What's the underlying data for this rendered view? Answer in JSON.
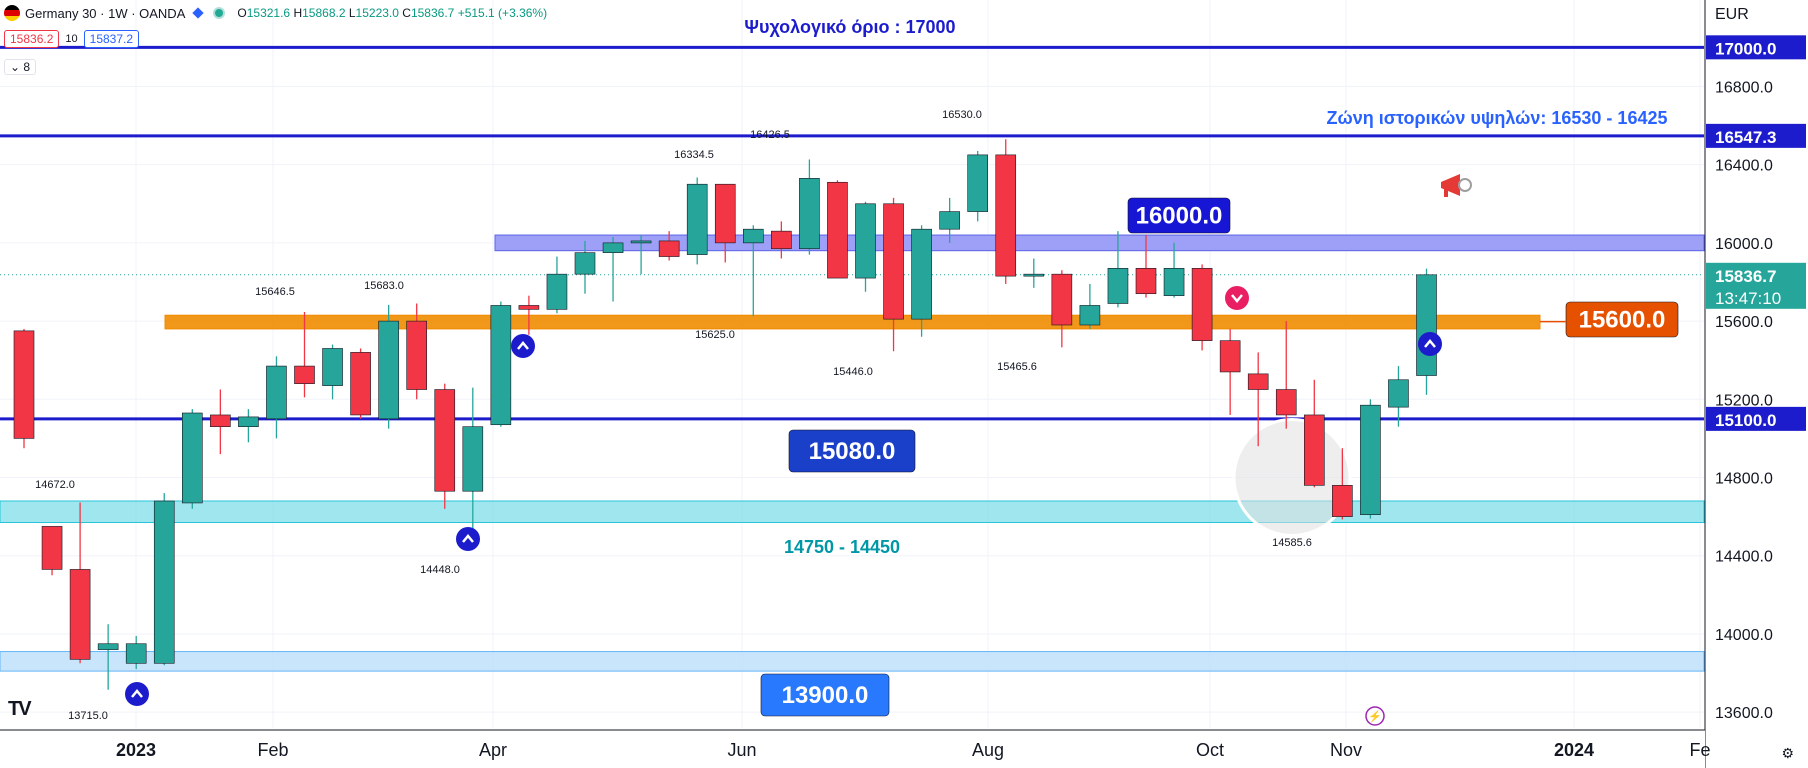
{
  "header": {
    "symbol_title": "Germany 30 · 1W · OANDA",
    "ohlc": {
      "o_label": "O",
      "o": "15321.6",
      "h_label": "H",
      "h": "15868.2",
      "l_label": "L",
      "l": "15223.0",
      "c_label": "C",
      "c": "15836.7",
      "change": "+515.1 (+3.36%)"
    },
    "bid": "15836.2",
    "spread": "10",
    "ask": "15837.2",
    "indicators_count": "8"
  },
  "colors": {
    "up": "#26a69a",
    "down": "#f23645",
    "blue_line": "#1c1ccc",
    "orange": "#f08c00",
    "cyan_zone": "#80deea",
    "lilac_zone": "#8c8ff5",
    "light_zone": "#bbdefb",
    "text_blue": "#1c1ccc",
    "text_teal": "#0097a7"
  },
  "chart_data": {
    "type": "candlestick",
    "currency": "EUR",
    "ylim": [
      13560,
      17150
    ],
    "y_ticks": [
      13600,
      14000,
      14400,
      14800,
      15200,
      15600,
      16000,
      16400,
      16800
    ],
    "x_tick_labels": [
      "2023",
      "Feb",
      "Apr",
      "Jun",
      "Aug",
      "Oct",
      "Nov",
      "2024",
      "Fe"
    ],
    "candles": [
      {
        "o": 15550,
        "h": 15560,
        "l": 14950,
        "c": 15000
      },
      {
        "o": 14550,
        "h": 14550,
        "l": 14300,
        "c": 14330
      },
      {
        "o": 14330,
        "h": 14672,
        "l": 13850,
        "c": 13870
      },
      {
        "o": 13920,
        "h": 14050,
        "l": 13715,
        "c": 13950
      },
      {
        "o": 13850,
        "h": 13990,
        "l": 13820,
        "c": 13950
      },
      {
        "o": 13850,
        "h": 14720,
        "l": 13840,
        "c": 14680
      },
      {
        "o": 14670,
        "h": 15150,
        "l": 14640,
        "c": 15130
      },
      {
        "o": 15120,
        "h": 15250,
        "l": 14920,
        "c": 15060
      },
      {
        "o": 15060,
        "h": 15150,
        "l": 14980,
        "c": 15110
      },
      {
        "o": 15100,
        "h": 15420,
        "l": 15000,
        "c": 15370
      },
      {
        "o": 15370,
        "h": 15646.5,
        "l": 15210,
        "c": 15280
      },
      {
        "o": 15270,
        "h": 15480,
        "l": 15200,
        "c": 15460
      },
      {
        "o": 15440,
        "h": 15460,
        "l": 15100,
        "c": 15120
      },
      {
        "o": 15100,
        "h": 15683,
        "l": 15050,
        "c": 15600
      },
      {
        "o": 15600,
        "h": 15690,
        "l": 15200,
        "c": 15250
      },
      {
        "o": 15250,
        "h": 15280,
        "l": 14640,
        "c": 14730
      },
      {
        "o": 14730,
        "h": 15260,
        "l": 14448,
        "c": 15060
      },
      {
        "o": 15070,
        "h": 15700,
        "l": 15060,
        "c": 15680
      },
      {
        "o": 15680,
        "h": 15730,
        "l": 15530,
        "c": 15660
      },
      {
        "o": 15660,
        "h": 15930,
        "l": 15640,
        "c": 15840
      },
      {
        "o": 15840,
        "h": 16010,
        "l": 15740,
        "c": 15950
      },
      {
        "o": 15950,
        "h": 16030,
        "l": 15700,
        "c": 16000
      },
      {
        "o": 16000,
        "h": 16040,
        "l": 15840,
        "c": 16010
      },
      {
        "o": 16010,
        "h": 16060,
        "l": 15910,
        "c": 15930
      },
      {
        "o": 15940,
        "h": 16334.5,
        "l": 15890,
        "c": 16300
      },
      {
        "o": 16300,
        "h": 16300,
        "l": 15900,
        "c": 16000
      },
      {
        "o": 16000,
        "h": 16090,
        "l": 15625,
        "c": 16070
      },
      {
        "o": 16060,
        "h": 16110,
        "l": 15920,
        "c": 15970
      },
      {
        "o": 15970,
        "h": 16426.5,
        "l": 15940,
        "c": 16330
      },
      {
        "o": 16310,
        "h": 16320,
        "l": 15820,
        "c": 15820
      },
      {
        "o": 15820,
        "h": 16210,
        "l": 15750,
        "c": 16200
      },
      {
        "o": 16200,
        "h": 16230,
        "l": 15446,
        "c": 15610
      },
      {
        "o": 15610,
        "h": 16090,
        "l": 15520,
        "c": 16070
      },
      {
        "o": 16070,
        "h": 16230,
        "l": 16000,
        "c": 16160
      },
      {
        "o": 16160,
        "h": 16470,
        "l": 16110,
        "c": 16450
      },
      {
        "o": 16450,
        "h": 16530,
        "l": 15790,
        "c": 15830
      },
      {
        "o": 15830,
        "h": 15920,
        "l": 15770,
        "c": 15840
      },
      {
        "o": 15840,
        "h": 15860,
        "l": 15465.6,
        "c": 15580
      },
      {
        "o": 15580,
        "h": 15790,
        "l": 15560,
        "c": 15680
      },
      {
        "o": 15690,
        "h": 16060,
        "l": 15670,
        "c": 15870
      },
      {
        "o": 15870,
        "h": 16040,
        "l": 15720,
        "c": 15740
      },
      {
        "o": 15730,
        "h": 16000,
        "l": 15720,
        "c": 15870
      },
      {
        "o": 15870,
        "h": 15890,
        "l": 15450,
        "c": 15500
      },
      {
        "o": 15500,
        "h": 15560,
        "l": 15120,
        "c": 15340
      },
      {
        "o": 15330,
        "h": 15440,
        "l": 14960,
        "c": 15250
      },
      {
        "o": 15250,
        "h": 15600,
        "l": 15050,
        "c": 15120
      },
      {
        "o": 15120,
        "h": 15300,
        "l": 14750,
        "c": 14760
      },
      {
        "o": 14760,
        "h": 14950,
        "l": 14585.6,
        "c": 14600
      },
      {
        "o": 14610,
        "h": 15200,
        "l": 14590,
        "c": 15170
      },
      {
        "o": 15160,
        "h": 15370,
        "l": 15060,
        "c": 15300
      },
      {
        "o": 15321.6,
        "h": 15868.2,
        "l": 15223.0,
        "c": 15836.7
      }
    ],
    "high_low_labels": [
      "14672.0",
      "13715.0",
      "15646.5",
      "15683.0",
      "14448.0",
      "16334.5",
      "15625.0",
      "16426.5",
      "15446.0",
      "16530.0",
      "15465.6",
      "14585.6"
    ],
    "levels": [
      {
        "value": 17000,
        "text": "Ψυχολογικό όριο : 17000",
        "price_label": "17000.0"
      },
      {
        "value": 16547.3,
        "text": "Ζώνη ιστορικών υψηλών: 16530 - 16425",
        "price_label": "16547.3"
      },
      {
        "value": 15100,
        "price_label": "15100.0"
      }
    ],
    "zones": [
      {
        "from": 15960,
        "to": 16040,
        "label": "16000.0"
      },
      {
        "from": 15560,
        "to": 15630,
        "label": "15600.0"
      },
      {
        "from": 14570,
        "to": 14680,
        "label": "14750 - 14450"
      },
      {
        "from": 13810,
        "to": 13910,
        "label": "13900.0"
      }
    ],
    "callouts": {
      "c15080": "15080.0"
    },
    "last_price": "15836.7",
    "countdown": "13:47:10"
  }
}
